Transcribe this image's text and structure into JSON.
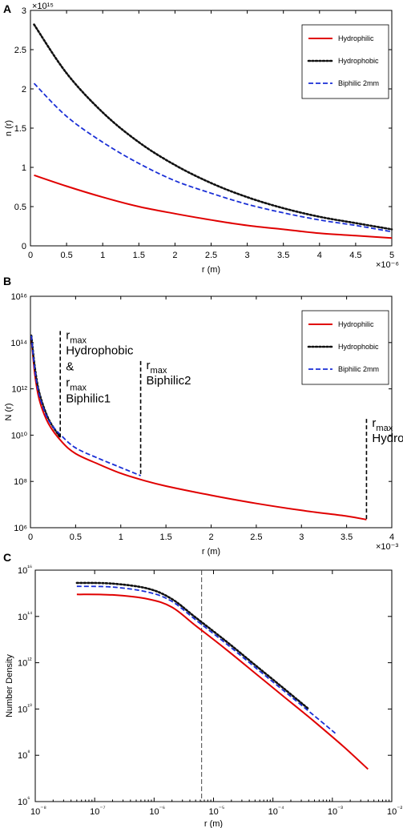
{
  "colors": {
    "hydrophilic": "#e00000",
    "hydrophobic": "#111111",
    "biphilic": "#1a2fd6",
    "axis": "#000000",
    "vline": "#444444"
  },
  "chart_data": [
    {
      "panel": "A",
      "type": "line",
      "xlabel": "r (m)",
      "ylabel": "n (r)",
      "x_exponent": "×10⁻⁶",
      "y_exponent": "×10¹⁵",
      "xlim": [
        0,
        5
      ],
      "ylim": [
        0,
        3
      ],
      "xticks": [
        "0",
        "0.5",
        "1",
        "1.5",
        "2",
        "2.5",
        "3",
        "3.5",
        "4",
        "4.5",
        "5"
      ],
      "yticks": [
        "0",
        "0.5",
        "1",
        "1.5",
        "2",
        "2.5",
        "3"
      ],
      "legend": {
        "position": "top-right",
        "entries": [
          "Hydrophilic",
          "Hydrophobic",
          "Biphilic 2mm"
        ]
      },
      "series": [
        {
          "name": "Hydrophilic",
          "x": [
            0.05,
            0.5,
            1,
            1.5,
            2,
            2.5,
            3,
            3.5,
            4,
            4.5,
            5
          ],
          "values": [
            0.9,
            0.76,
            0.62,
            0.5,
            0.41,
            0.33,
            0.26,
            0.21,
            0.16,
            0.13,
            0.1
          ]
        },
        {
          "name": "Hydrophobic",
          "x": [
            0.05,
            0.5,
            1,
            1.5,
            2,
            2.5,
            3,
            3.5,
            4,
            4.5,
            5
          ],
          "values": [
            2.82,
            2.2,
            1.7,
            1.32,
            1.03,
            0.8,
            0.62,
            0.48,
            0.37,
            0.29,
            0.21
          ]
        },
        {
          "name": "Biphilic 2mm",
          "x": [
            0.05,
            0.5,
            1,
            1.5,
            2,
            2.5,
            3,
            3.5,
            4,
            4.5,
            5
          ],
          "values": [
            2.07,
            1.65,
            1.32,
            1.05,
            0.83,
            0.67,
            0.53,
            0.42,
            0.33,
            0.26,
            0.18
          ]
        }
      ]
    },
    {
      "panel": "B",
      "type": "line",
      "xlabel": "r (m)",
      "ylabel": "N (r)",
      "x_exponent": "×10⁻³",
      "xlim": [
        0,
        4
      ],
      "ylim_exponent": [
        6,
        16
      ],
      "xticks": [
        "0",
        "0.5",
        "1",
        "1.5",
        "2",
        "2.5",
        "3",
        "3.5",
        "4"
      ],
      "yticks": [
        "10⁶",
        "10⁸",
        "10¹⁰",
        "10¹²",
        "10¹⁴",
        "10¹⁶"
      ],
      "legend": {
        "position": "top-right",
        "entries": [
          "Hydrophilic",
          "Hydrophobic",
          "Biphilic 2mm"
        ]
      },
      "series": [
        {
          "name": "Hydrophilic",
          "x": [
            0.01,
            0.05,
            0.1,
            0.2,
            0.35,
            0.5,
            0.75,
            1,
            1.25,
            1.5,
            2,
            2.5,
            3,
            3.5,
            3.72
          ],
          "log10_values": [
            14.2,
            12.6,
            11.5,
            10.5,
            9.7,
            9.2,
            8.75,
            8.35,
            8.05,
            7.8,
            7.4,
            7.05,
            6.75,
            6.5,
            6.35
          ]
        },
        {
          "name": "Hydrophobic",
          "x": [
            0.01,
            0.05,
            0.1,
            0.2,
            0.33
          ],
          "log10_values": [
            14.3,
            12.9,
            11.8,
            10.7,
            9.9
          ]
        },
        {
          "name": "Biphilic 2mm",
          "x": [
            0.01,
            0.05,
            0.1,
            0.2,
            0.35,
            0.5,
            0.75,
            1,
            1.22
          ],
          "log10_values": [
            14.3,
            12.8,
            11.7,
            10.65,
            9.95,
            9.45,
            9.0,
            8.6,
            8.25
          ]
        }
      ],
      "annotations": [
        {
          "x": 0.33,
          "ymax_exp": 14.5,
          "ymin_exp": 9.9,
          "r": "r",
          "sub": "max",
          "lines": [
            "Hydrophobic",
            "&",
            "r"
          ],
          "sub2": "max",
          "tail": "Biphilic1"
        },
        {
          "x": 1.22,
          "ymax_exp": 13.2,
          "ymin_exp": 8.25,
          "r": "r",
          "sub": "max",
          "lines": [
            "Biphilic2"
          ]
        },
        {
          "x": 3.72,
          "ymax_exp": 10.7,
          "ymin_exp": 6.35,
          "r": "r",
          "sub": "max",
          "lines": [
            "Hydrophilic"
          ]
        }
      ]
    },
    {
      "panel": "C",
      "type": "line",
      "xlabel": "r (m)",
      "ylabel": "Number Density",
      "xscale": "log",
      "yscale": "log",
      "xlim_exponent": [
        -8,
        -2
      ],
      "ylim_exponent": [
        6,
        16
      ],
      "xticks": [
        "10⁻⁸",
        "10⁻⁷",
        "10⁻⁶",
        "10⁻⁵",
        "10⁻⁴",
        "10⁻³",
        "10⁻²"
      ],
      "yticks": [
        "10⁶",
        "10⁸",
        "10¹⁰",
        "10¹²",
        "10¹⁴",
        "10¹⁶"
      ],
      "vline_exp": -5.2,
      "series": [
        {
          "name": "Hydrophilic",
          "log10_x": [
            -7.3,
            -6.7,
            -6.1,
            -5.7,
            -5.3,
            -4.8,
            -4.3,
            -3.8,
            -3.3,
            -2.8,
            -2.4
          ],
          "log10_values": [
            14.95,
            14.93,
            14.75,
            14.4,
            13.6,
            12.6,
            11.55,
            10.5,
            9.45,
            8.35,
            7.4
          ]
        },
        {
          "name": "Hydrophobic",
          "log10_x": [
            -7.3,
            -6.7,
            -6.1,
            -5.7,
            -5.3,
            -4.8,
            -4.3,
            -3.8,
            -3.4
          ],
          "log10_values": [
            15.45,
            15.42,
            15.2,
            14.75,
            13.95,
            12.95,
            11.9,
            10.85,
            10.0
          ]
        },
        {
          "name": "Biphilic 2mm",
          "log10_x": [
            -7.3,
            -6.7,
            -6.1,
            -5.7,
            -5.3,
            -4.8,
            -4.3,
            -3.8,
            -3.3,
            -2.95
          ],
          "log10_values": [
            15.3,
            15.27,
            15.05,
            14.65,
            13.85,
            12.85,
            11.8,
            10.75,
            9.7,
            8.95
          ]
        }
      ]
    }
  ]
}
